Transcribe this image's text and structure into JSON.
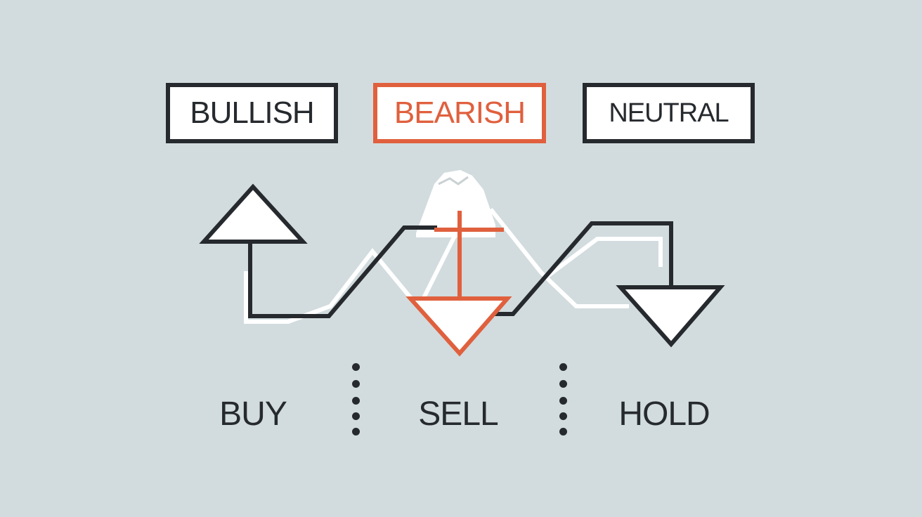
{
  "labels": {
    "bullish": "BULLISH",
    "bearish": "BEARISH",
    "neutral": "NEUTRAL"
  },
  "actions": {
    "buy": "BUY",
    "sell": "SELL",
    "hold": "HOLD"
  },
  "colors": {
    "background": "#d2dcde",
    "ink": "#262a2e",
    "accent": "#e0603e",
    "fill": "#ffffff"
  },
  "icons": {
    "bullish": "up-arrow-icon",
    "bearish": "down-arrow-icon",
    "neutral": "down-arrow-icon"
  }
}
